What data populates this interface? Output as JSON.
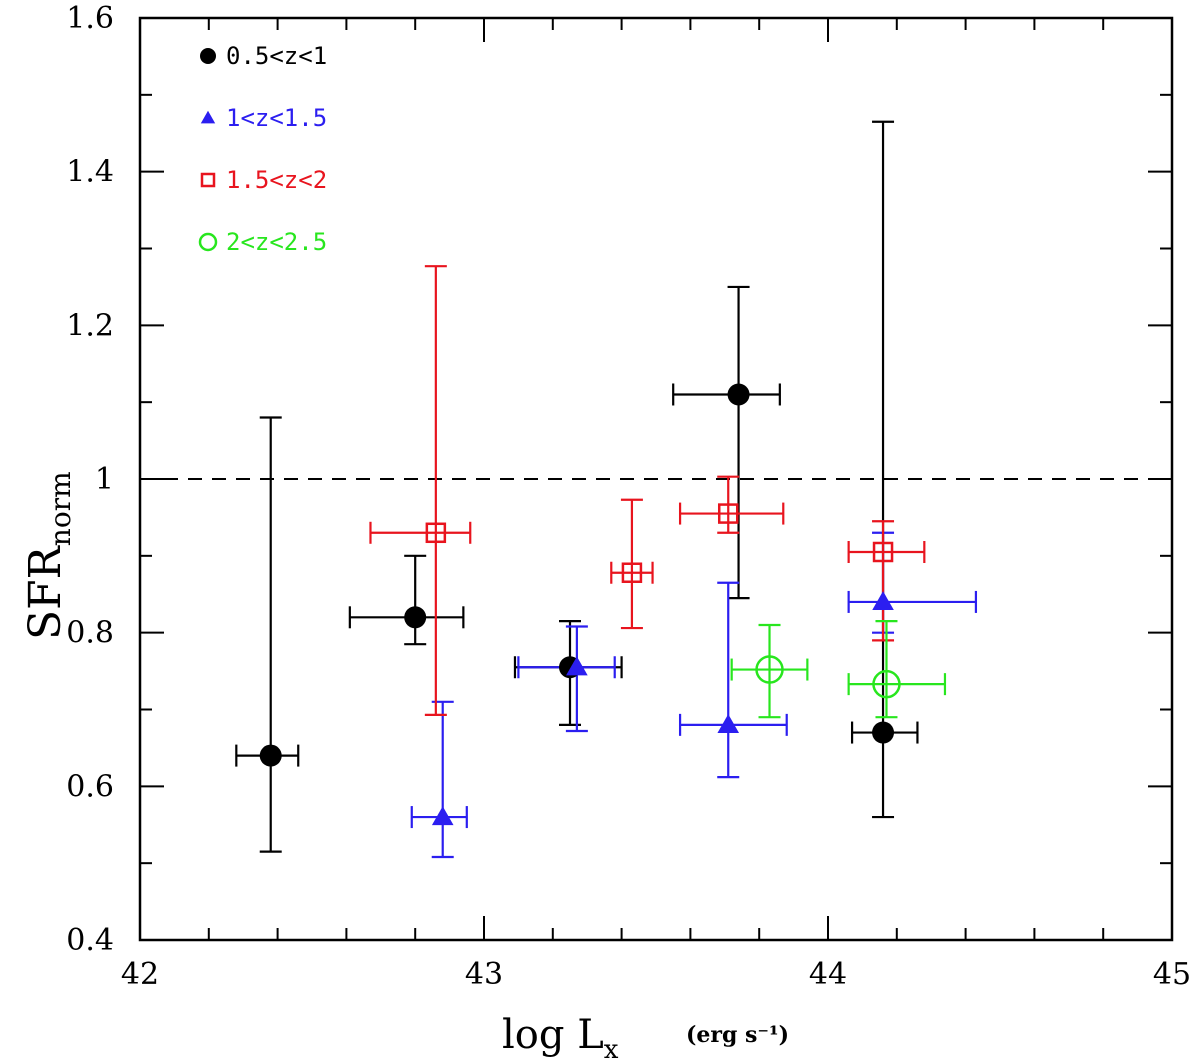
{
  "chart_data": {
    "type": "scatter",
    "xlabel": "log L",
    "xlabel_sub": "x",
    "xlabel_units": "(erg s⁻¹)",
    "ylabel": "SFR",
    "ylabel_sub": "norm",
    "xlim": [
      42,
      45
    ],
    "ylim": [
      0.4,
      1.6
    ],
    "x_major_ticks": [
      42,
      43,
      44,
      45
    ],
    "x_tick_labels": [
      "42",
      "43",
      "44",
      "45"
    ],
    "x_minor_step": 0.2,
    "y_major_ticks": [
      0.4,
      0.6,
      0.8,
      1.0,
      1.2,
      1.4,
      1.6
    ],
    "y_tick_labels": [
      "0.4",
      "0.6",
      "0.8",
      "1",
      "1.2",
      "1.4",
      "1.6"
    ],
    "y_minor_step": 0.1,
    "reference_line": {
      "y": 1.0,
      "style": "dashed",
      "color": "#000000"
    },
    "legend_position": "top-left",
    "series": [
      {
        "name": "0.5<z<1",
        "marker": "filled-circle",
        "color": "#000000",
        "points": [
          {
            "x": 42.38,
            "y": 0.64,
            "xerr_low": 0.1,
            "xerr_high": 0.08,
            "y_low": 0.515,
            "y_high": 1.08
          },
          {
            "x": 42.8,
            "y": 0.82,
            "xerr_low": 0.19,
            "xerr_high": 0.14,
            "y_low": 0.785,
            "y_high": 0.9
          },
          {
            "x": 43.25,
            "y": 0.755,
            "xerr_low": 0.16,
            "xerr_high": 0.15,
            "y_low": 0.68,
            "y_high": 0.815
          },
          {
            "x": 43.74,
            "y": 1.11,
            "xerr_low": 0.19,
            "xerr_high": 0.12,
            "y_low": 0.845,
            "y_high": 1.25
          },
          {
            "x": 44.16,
            "y": 0.67,
            "xerr_low": 0.09,
            "xerr_high": 0.1,
            "y_low": 0.56,
            "y_high": 1.465
          }
        ]
      },
      {
        "name": "1<z<1.5",
        "marker": "filled-triangle",
        "color": "#2b1ef0",
        "points": [
          {
            "x": 42.88,
            "y": 0.56,
            "xerr_low": 0.09,
            "xerr_high": 0.07,
            "y_low": 0.508,
            "y_high": 0.71
          },
          {
            "x": 43.27,
            "y": 0.755,
            "xerr_low": 0.17,
            "xerr_high": 0.11,
            "y_low": 0.672,
            "y_high": 0.808
          },
          {
            "x": 43.71,
            "y": 0.68,
            "xerr_low": 0.14,
            "xerr_high": 0.17,
            "y_low": 0.612,
            "y_high": 0.865
          },
          {
            "x": 44.16,
            "y": 0.84,
            "xerr_low": 0.1,
            "xerr_high": 0.27,
            "y_low": 0.8,
            "y_high": 0.93
          }
        ]
      },
      {
        "name": "1.5<z<2",
        "marker": "open-square",
        "color": "#e8141e",
        "points": [
          {
            "x": 42.86,
            "y": 0.93,
            "xerr_low": 0.19,
            "xerr_high": 0.1,
            "y_low": 0.693,
            "y_high": 1.277
          },
          {
            "x": 43.43,
            "y": 0.878,
            "xerr_low": 0.06,
            "xerr_high": 0.06,
            "y_low": 0.806,
            "y_high": 0.973
          },
          {
            "x": 43.71,
            "y": 0.955,
            "xerr_low": 0.14,
            "xerr_high": 0.16,
            "y_low": 0.93,
            "y_high": 1.003
          },
          {
            "x": 44.16,
            "y": 0.905,
            "xerr_low": 0.1,
            "xerr_high": 0.12,
            "y_low": 0.79,
            "y_high": 0.945
          }
        ]
      },
      {
        "name": "2<z<2.5",
        "marker": "open-circle",
        "color": "#28e61e",
        "points": [
          {
            "x": 43.83,
            "y": 0.752,
            "xerr_low": 0.11,
            "xerr_high": 0.11,
            "y_low": 0.69,
            "y_high": 0.81
          },
          {
            "x": 44.17,
            "y": 0.733,
            "xerr_low": 0.11,
            "xerr_high": 0.17,
            "y_low": 0.69,
            "y_high": 0.815
          }
        ]
      }
    ]
  }
}
